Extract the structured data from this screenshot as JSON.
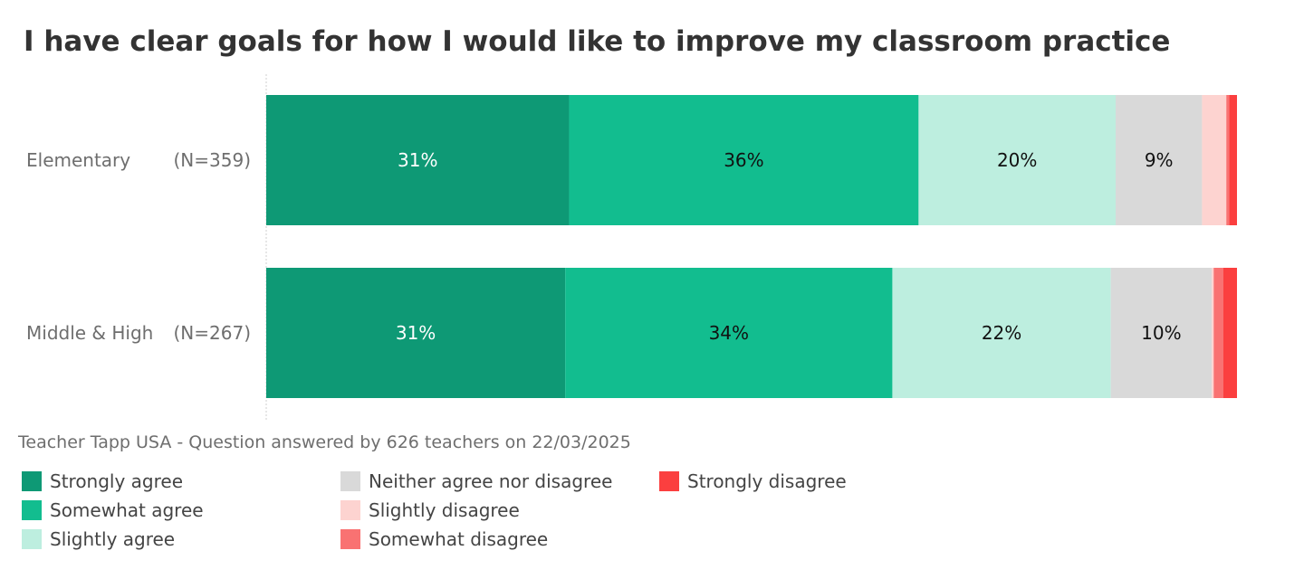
{
  "chart_data": {
    "type": "bar",
    "orientation": "horizontal",
    "stacked": true,
    "title": "I have clear goals for how I would like to improve my classroom practice",
    "categories": [
      "Elementary",
      "Middle & High"
    ],
    "sample_sizes": [
      "(N=359)",
      "(N=267)"
    ],
    "series": [
      {
        "name": "Strongly agree",
        "color": "#0e9975",
        "label_color": "#ffffff",
        "values": [
          31.2,
          30.8
        ],
        "labels": [
          "31%",
          "31%"
        ]
      },
      {
        "name": "Somewhat agree",
        "color": "#12bd8f",
        "label_color": "#111111",
        "values": [
          36.0,
          33.7
        ],
        "labels": [
          "36%",
          "34%"
        ]
      },
      {
        "name": "Slightly agree",
        "color": "#bdeedf",
        "label_color": "#111111",
        "values": [
          20.3,
          22.5
        ],
        "labels": [
          "20%",
          "22%"
        ]
      },
      {
        "name": "Neither agree nor disagree",
        "color": "#d9d9d9",
        "label_color": "#111111",
        "values": [
          8.9,
          10.4
        ],
        "labels": [
          "9%",
          "10%"
        ]
      },
      {
        "name": "Slightly disagree",
        "color": "#fdd3d0",
        "label_color": "#111111",
        "values": [
          2.5,
          0.2
        ],
        "labels": [
          "",
          ""
        ]
      },
      {
        "name": "Somewhat disagree",
        "color": "#f97272",
        "label_color": "#111111",
        "values": [
          0.3,
          1.0
        ],
        "labels": [
          "",
          ""
        ]
      },
      {
        "name": "Strongly disagree",
        "color": "#fb3f3f",
        "label_color": "#111111",
        "values": [
          0.8,
          1.4
        ],
        "labels": [
          "",
          ""
        ]
      }
    ],
    "xlim": [
      0,
      100
    ],
    "grid": false,
    "legend_position": "bottom"
  },
  "footnote": "Teacher Tapp USA - Question answered by 626 teachers on 22/03/2025"
}
